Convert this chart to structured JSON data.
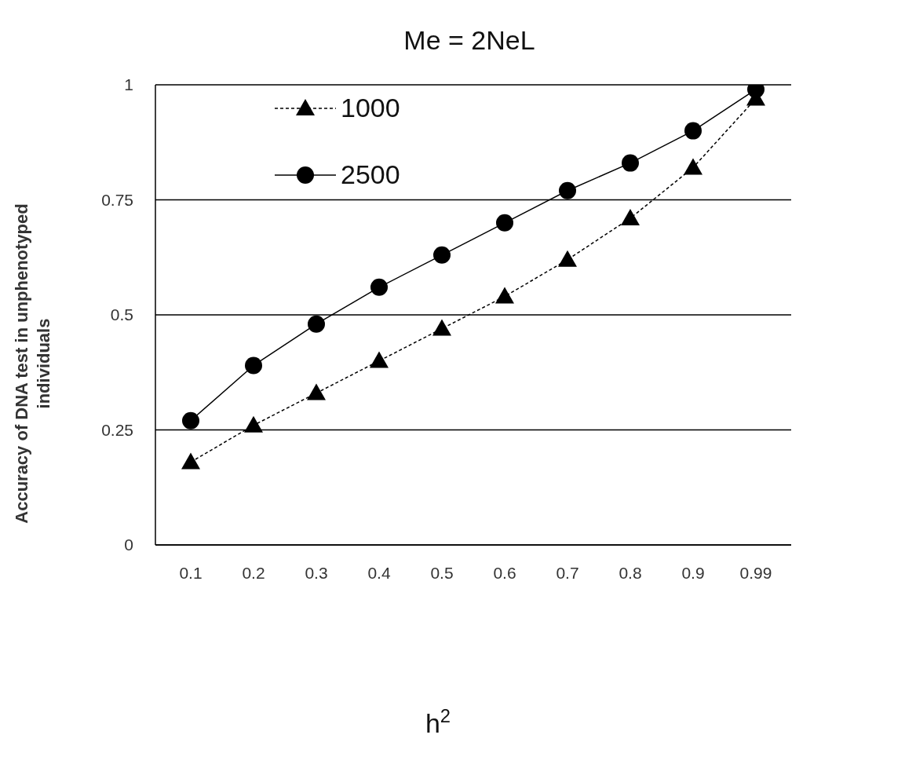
{
  "chart_data": {
    "type": "line",
    "title": "Me = 2NeL",
    "xlabel": "h$^{2}$",
    "ylabel": "Accuracy of DNA test in unphenotyped individuals",
    "categories": [
      "0.1",
      "0.2",
      "0.3",
      "0.4",
      "0.5",
      "0.6",
      "0.7",
      "0.8",
      "0.9",
      "0.99"
    ],
    "series": [
      {
        "name": "1000",
        "color": "#000000",
        "marker": "triangle",
        "line_style": "dashed",
        "values": [
          0.18,
          0.26,
          0.33,
          0.4,
          0.47,
          0.54,
          0.62,
          0.71,
          0.82,
          0.97
        ]
      },
      {
        "name": "2500",
        "color": "#000000",
        "marker": "circle",
        "line_style": "solid",
        "values": [
          0.27,
          0.39,
          0.48,
          0.56,
          0.63,
          0.7,
          0.77,
          0.83,
          0.9,
          0.99
        ]
      }
    ],
    "ylim": [
      0,
      1
    ],
    "yticks": [
      0,
      0.25,
      0.5,
      0.75,
      1
    ],
    "grid": "y",
    "legend": "top left"
  }
}
